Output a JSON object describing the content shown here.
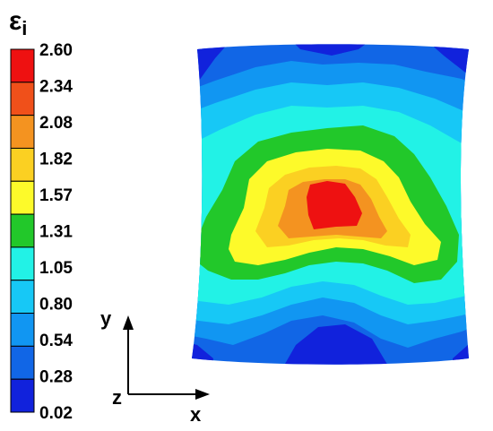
{
  "legend": {
    "symbol_base": "ε",
    "symbol_sub": "i",
    "ticks": [
      "2.60",
      "2.34",
      "2.08",
      "1.82",
      "1.57",
      "1.31",
      "1.05",
      "0.80",
      "0.54",
      "0.28",
      "0.02"
    ],
    "band_colors": [
      "#ee1111",
      "#f0501a",
      "#f49320",
      "#fbd022",
      "#fdfa2a",
      "#22c82a",
      "#22f2e6",
      "#17c8f6",
      "#1196f2",
      "#1166e6",
      "#1122dc"
    ]
  },
  "axes": {
    "y_label": "y",
    "x_label": "x",
    "z_label": "z"
  },
  "contour": {
    "colors": {
      "level_0": "#1122dc",
      "level_1": "#1166e6",
      "level_2": "#1196f2",
      "level_3": "#17c8f6",
      "level_4": "#22f2e6",
      "level_5": "#22c82a",
      "level_6": "#fdfa2a",
      "level_7": "#fbd022",
      "level_8": "#f49320",
      "level_9": "#ee1111"
    }
  }
}
